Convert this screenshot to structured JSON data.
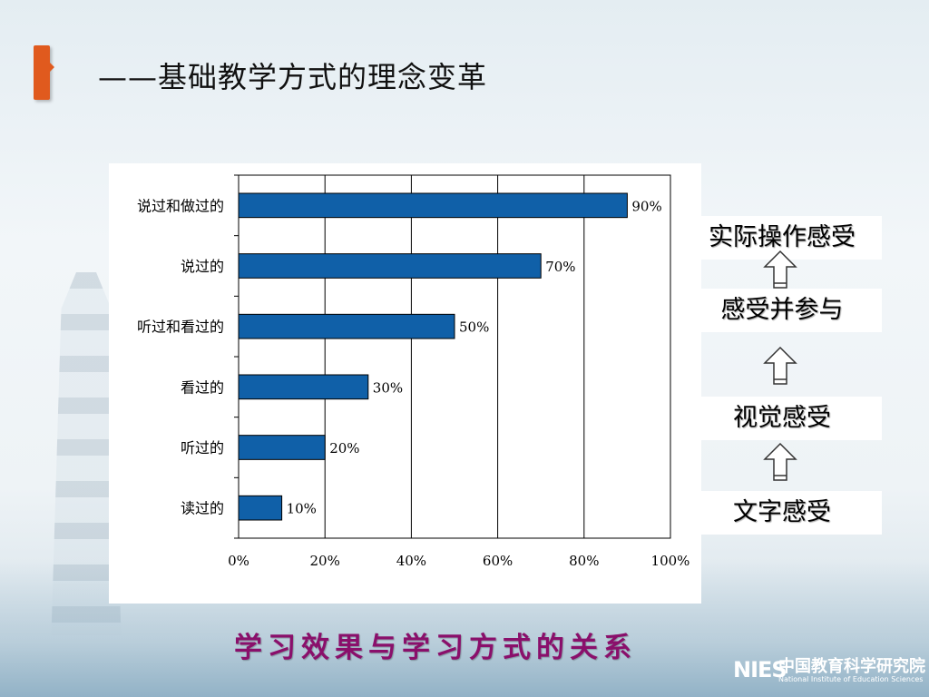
{
  "slide": {
    "title": "——基础教学方式的理念变革",
    "caption": "学习效果与学习方式的关系",
    "accent_color": "#e05a1e",
    "caption_color": "#8a0f6b"
  },
  "steps": [
    "实际操作感受",
    "感受并参与",
    "视觉感受",
    "文字感受"
  ],
  "logo": {
    "mark": "NIES",
    "chinese": "中国教育科学研究院",
    "english": "National Institute of Education Sciences"
  },
  "chart_data": {
    "type": "bar",
    "orientation": "horizontal",
    "categories": [
      "说过和做过的",
      "说过的",
      "听过和看过的",
      "看过的",
      "听过的",
      "读过的"
    ],
    "values": [
      90,
      70,
      50,
      30,
      20,
      10
    ],
    "value_labels": [
      "90%",
      "70%",
      "50%",
      "30%",
      "20%",
      "10%"
    ],
    "xlim": [
      0,
      100
    ],
    "x_ticks": [
      "0%",
      "20%",
      "40%",
      "60%",
      "80%",
      "100%"
    ],
    "bar_color": "#1060a8",
    "grid": true
  }
}
